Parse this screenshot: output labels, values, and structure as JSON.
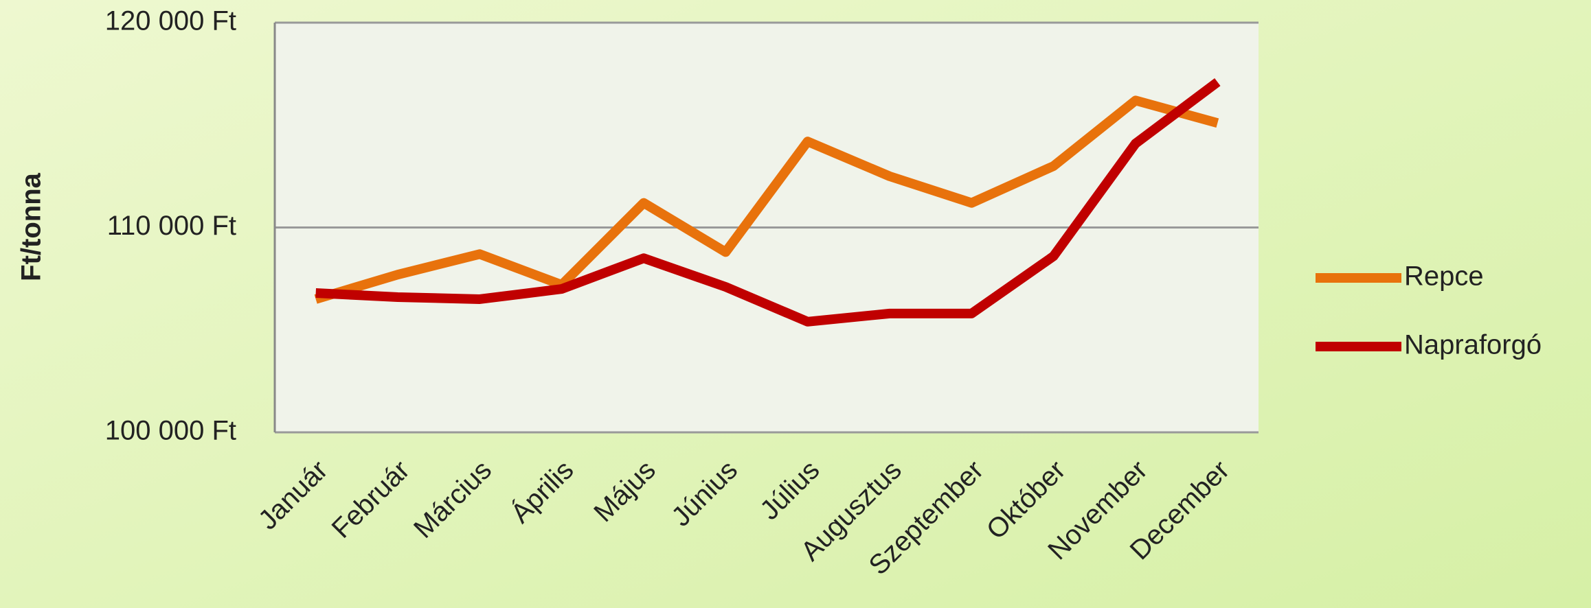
{
  "chart_data": {
    "type": "line",
    "y_label": "Ft/tonna",
    "categories": [
      "Január",
      "Február",
      "Március",
      "Április",
      "Május",
      "Június",
      "Július",
      "Augusztus",
      "Szeptember",
      "Október",
      "November",
      "December"
    ],
    "series": [
      {
        "name": "Repce",
        "color": "#e8720c",
        "values": [
          106500,
          107700,
          108700,
          107200,
          111200,
          108800,
          114200,
          112500,
          111200,
          113000,
          116200,
          115100
        ]
      },
      {
        "name": "Napraforgó",
        "color": "#c00000",
        "values": [
          106800,
          106600,
          106500,
          107000,
          108500,
          107100,
          105400,
          105800,
          105800,
          108600,
          114100,
          117100
        ]
      }
    ],
    "ylim": [
      100000,
      120000
    ],
    "yticks": [
      {
        "value": 100000,
        "label": "100 000 Ft"
      },
      {
        "value": 110000,
        "label": "110 000 Ft"
      },
      {
        "value": 120000,
        "label": "120 000 Ft"
      }
    ],
    "grid": true,
    "legend": "right"
  }
}
